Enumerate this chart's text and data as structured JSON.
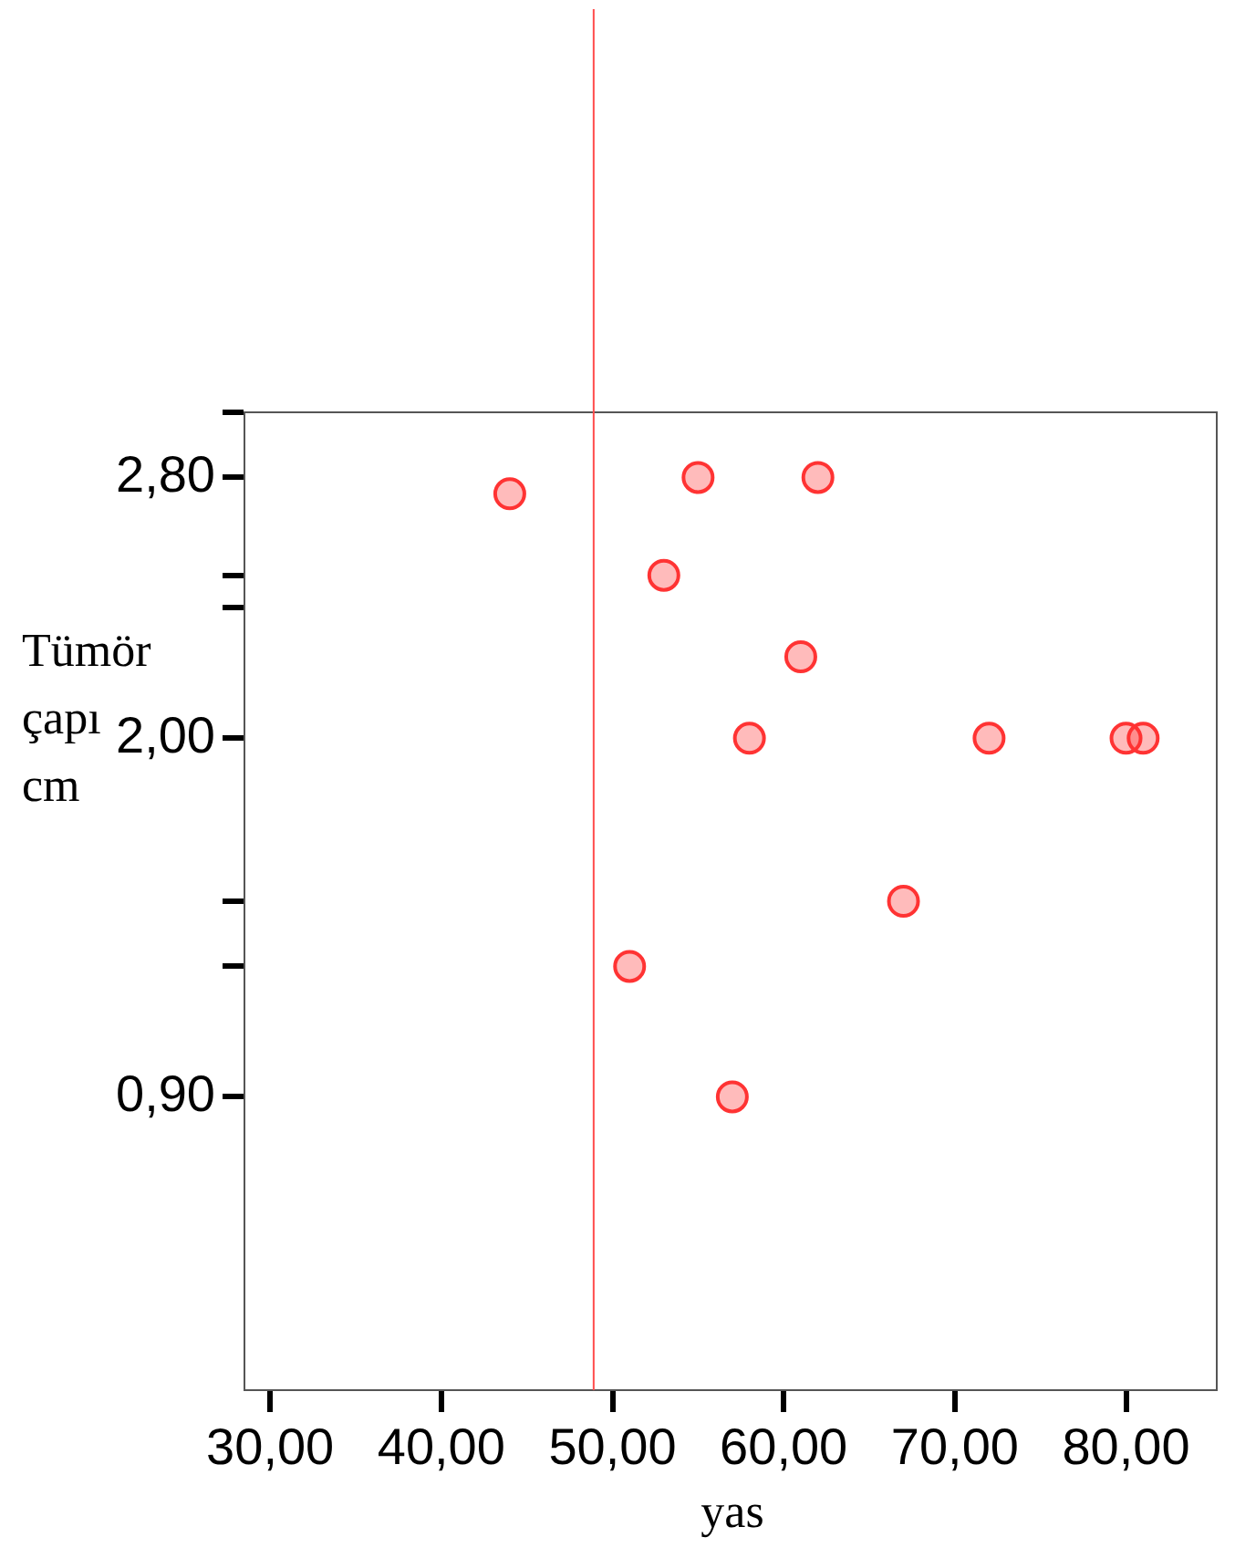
{
  "chart_data": {
    "type": "scatter",
    "xlabel": "yas",
    "ylabel": "Tümör çapı cm",
    "x": [
      44,
      55,
      62,
      53,
      61,
      58,
      72,
      80,
      81,
      67,
      51,
      57
    ],
    "series": [
      {
        "color": "#ff3333",
        "values": [
          2.75,
          2.8,
          2.8,
          2.5,
          2.25,
          2.0,
          2.0,
          2.0,
          2.0,
          1.5,
          1.3,
          0.9
        ]
      }
    ],
    "marker": "circle",
    "grid": false,
    "legend": false,
    "xlim": [
      28.5,
      85.3
    ],
    "xticks": [
      {
        "value": 30,
        "label": "30,00"
      },
      {
        "value": 40,
        "label": "40,00"
      },
      {
        "value": 50,
        "label": "50,00"
      },
      {
        "value": 60,
        "label": "60,00"
      },
      {
        "value": 70,
        "label": "70,00"
      },
      {
        "value": 80,
        "label": "80,00"
      }
    ],
    "ylim": [
      0,
      3
    ],
    "yticks": [
      {
        "value": 3,
        "label": null
      },
      {
        "value": 2.8,
        "label": "2,80"
      },
      {
        "value": 2.5,
        "label": null
      },
      {
        "value": 2.4,
        "label": null
      },
      {
        "value": 2.0,
        "label": "2,00"
      },
      {
        "value": 1.5,
        "label": null
      },
      {
        "value": 1.3,
        "label": null
      },
      {
        "value": 0.9,
        "label": "0,90"
      }
    ],
    "ref_lines": [
      {
        "axis": "x",
        "value": 48.9,
        "color": "#ff4d4d"
      }
    ]
  }
}
